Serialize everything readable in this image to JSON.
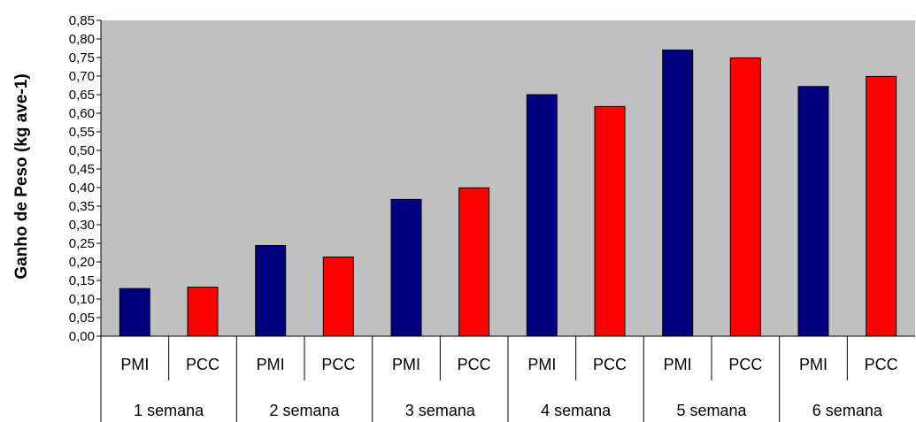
{
  "chart_data": {
    "type": "bar",
    "title": "",
    "xlabel": "",
    "ylabel": "Ganho de Peso (kg ave-1)",
    "ylim": [
      0,
      0.85
    ],
    "ytick_step": 0.05,
    "ytick_labels": [
      "0,00",
      "0,05",
      "0,10",
      "0,15",
      "0,20",
      "0,25",
      "0,30",
      "0,35",
      "0,40",
      "0,45",
      "0,50",
      "0,55",
      "0,60",
      "0,65",
      "0,70",
      "0,75",
      "0,80",
      "0,85"
    ],
    "grid": false,
    "legend": "none",
    "groups": [
      "1 semana",
      "2 semana",
      "3 semana",
      "4 semana",
      "5 semana",
      "6 semana"
    ],
    "categories": [
      "PMI",
      "PCC",
      "PMI",
      "PCC",
      "PMI",
      "PCC",
      "PMI",
      "PCC",
      "PMI",
      "PCC",
      "PMI",
      "PCC"
    ],
    "values": [
      0.128,
      0.132,
      0.244,
      0.213,
      0.368,
      0.399,
      0.65,
      0.618,
      0.77,
      0.749,
      0.672,
      0.699
    ],
    "colors": {
      "PMI": "#000080",
      "PCC": "#ff0000",
      "plot_background": "#c0c0c0"
    }
  }
}
